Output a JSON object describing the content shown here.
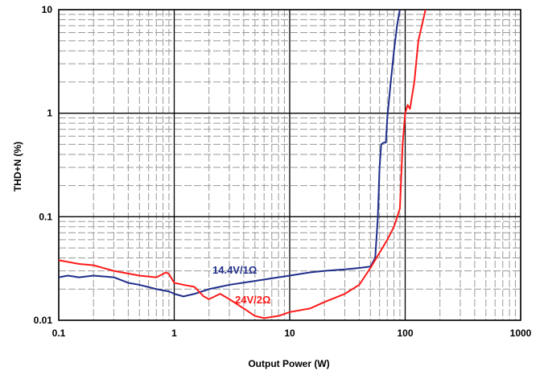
{
  "chart_data": {
    "type": "line",
    "xlabel": "Output Power (W)",
    "ylabel": "THD+N (%)",
    "x_scale": "log",
    "y_scale": "log",
    "xlim": [
      0.1,
      1000
    ],
    "ylim": [
      0.01,
      10
    ],
    "x_ticks": [
      "0.1",
      "1",
      "10",
      "100",
      "1000"
    ],
    "y_ticks": [
      "0.01",
      "0.1",
      "1",
      "10"
    ],
    "grid": true,
    "colors": {
      "blue": "#1f2d8a",
      "red": "#ff1a1a"
    },
    "series": [
      {
        "name": "14.4V/1Ω",
        "color": "#1f2d8a",
        "x": [
          0.1,
          0.12,
          0.15,
          0.2,
          0.3,
          0.4,
          0.5,
          0.7,
          0.9,
          1.0,
          1.2,
          1.5,
          2,
          3,
          5,
          8,
          10,
          15,
          20,
          30,
          40,
          50,
          55,
          58,
          60,
          62,
          65,
          68,
          70,
          75,
          80,
          85,
          90
        ],
        "y": [
          0.026,
          0.027,
          0.026,
          0.027,
          0.026,
          0.023,
          0.022,
          0.02,
          0.019,
          0.018,
          0.017,
          0.018,
          0.02,
          0.022,
          0.024,
          0.026,
          0.027,
          0.029,
          0.03,
          0.031,
          0.032,
          0.033,
          0.04,
          0.1,
          0.3,
          0.5,
          0.52,
          0.52,
          0.9,
          2.0,
          4.0,
          7.0,
          10
        ]
      },
      {
        "name": "24V/2Ω",
        "color": "#ff1a1a",
        "x": [
          0.1,
          0.15,
          0.2,
          0.3,
          0.5,
          0.7,
          0.85,
          0.9,
          1.0,
          1.2,
          1.5,
          1.8,
          2.0,
          2.5,
          3.0,
          4,
          5,
          6,
          8,
          10,
          15,
          20,
          30,
          40,
          50,
          60,
          70,
          80,
          90,
          95,
          100,
          105,
          110,
          120,
          130,
          150
        ],
        "y": [
          0.038,
          0.035,
          0.034,
          0.03,
          0.027,
          0.026,
          0.029,
          0.028,
          0.023,
          0.022,
          0.021,
          0.017,
          0.016,
          0.018,
          0.016,
          0.013,
          0.011,
          0.0105,
          0.011,
          0.012,
          0.013,
          0.015,
          0.018,
          0.022,
          0.032,
          0.045,
          0.06,
          0.08,
          0.12,
          0.5,
          1.0,
          1.2,
          1.1,
          2.0,
          5.0,
          10
        ]
      }
    ]
  }
}
